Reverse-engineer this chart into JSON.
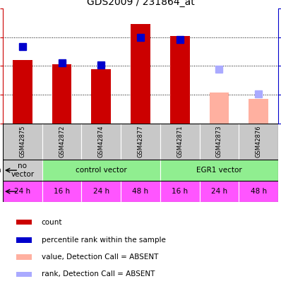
{
  "title": "GDS2009 / 231864_at",
  "samples": [
    "GSM42875",
    "GSM42872",
    "GSM42874",
    "GSM42877",
    "GSM42871",
    "GSM42873",
    "GSM42876"
  ],
  "counts": [
    330,
    308,
    285,
    520,
    455,
    163,
    130
  ],
  "ranks_pct": [
    67,
    53,
    51,
    75,
    73,
    null,
    null
  ],
  "absent_counts": [
    null,
    null,
    null,
    null,
    null,
    163,
    130
  ],
  "absent_ranks_pct": [
    null,
    null,
    null,
    null,
    null,
    47,
    26
  ],
  "count_color": "#CC0000",
  "absent_count_color": "#FFB0A0",
  "rank_color": "#0000CC",
  "absent_rank_color": "#AAAAFF",
  "ylim_left": [
    0,
    600
  ],
  "ylim_right": [
    0,
    100
  ],
  "yticks_left": [
    0,
    150,
    300,
    450,
    600
  ],
  "yticks_right": [
    0,
    25,
    50,
    75,
    100
  ],
  "inf_groups": [
    {
      "label": "no\nvector",
      "start": 0,
      "end": 1,
      "color": "#CCCCCC"
    },
    {
      "label": "control vector",
      "start": 1,
      "end": 4,
      "color": "#90EE90"
    },
    {
      "label": "EGR1 vector",
      "start": 4,
      "end": 7,
      "color": "#90EE90"
    }
  ],
  "time_labels": [
    "24 h",
    "16 h",
    "24 h",
    "48 h",
    "16 h",
    "24 h",
    "48 h"
  ],
  "time_color": "#FF55FF",
  "legend_items": [
    {
      "label": "count",
      "color": "#CC0000"
    },
    {
      "label": "percentile rank within the sample",
      "color": "#0000CC"
    },
    {
      "label": "value, Detection Call = ABSENT",
      "color": "#FFB0A0"
    },
    {
      "label": "rank, Detection Call = ABSENT",
      "color": "#AAAAFF"
    }
  ],
  "bar_width": 0.5,
  "marker_size": 7
}
